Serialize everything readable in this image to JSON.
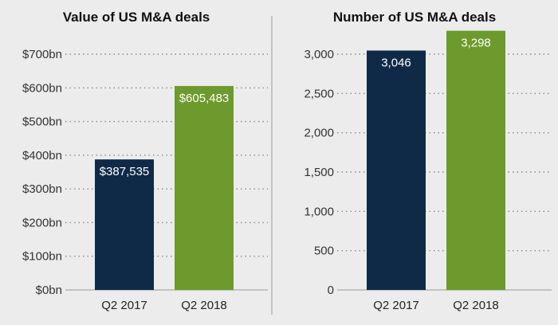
{
  "chart_data": [
    {
      "type": "bar",
      "title": "Value of US M&A deals",
      "categories": [
        "Q2 2017",
        "Q2 2018"
      ],
      "values": [
        387535,
        605483
      ],
      "data_labels": [
        "$387,535",
        "$605,483"
      ],
      "bar_colors": [
        "#0f2a47",
        "#6d9a2c"
      ],
      "ylim": [
        0,
        700000
      ],
      "yticks": [
        0,
        100000,
        200000,
        300000,
        400000,
        500000,
        600000,
        700000
      ],
      "ytick_labels": [
        "$0bn",
        "$100bn",
        "$200bn",
        "$300bn",
        "$400bn",
        "$500bn",
        "$600bn",
        "$700bn"
      ],
      "grid": true
    },
    {
      "type": "bar",
      "title": "Number of US M&A deals",
      "categories": [
        "Q2 2017",
        "Q2 2018"
      ],
      "values": [
        3046,
        3298
      ],
      "data_labels": [
        "3,046",
        "3,298"
      ],
      "bar_colors": [
        "#0f2a47",
        "#6d9a2c"
      ],
      "ylim": [
        0,
        3000
      ],
      "yticks": [
        0,
        500,
        1000,
        1500,
        2000,
        2500,
        3000
      ],
      "ytick_labels": [
        "0",
        "500",
        "1,000",
        "1,500",
        "2,000",
        "2,500",
        "3,000"
      ],
      "grid": true
    }
  ]
}
